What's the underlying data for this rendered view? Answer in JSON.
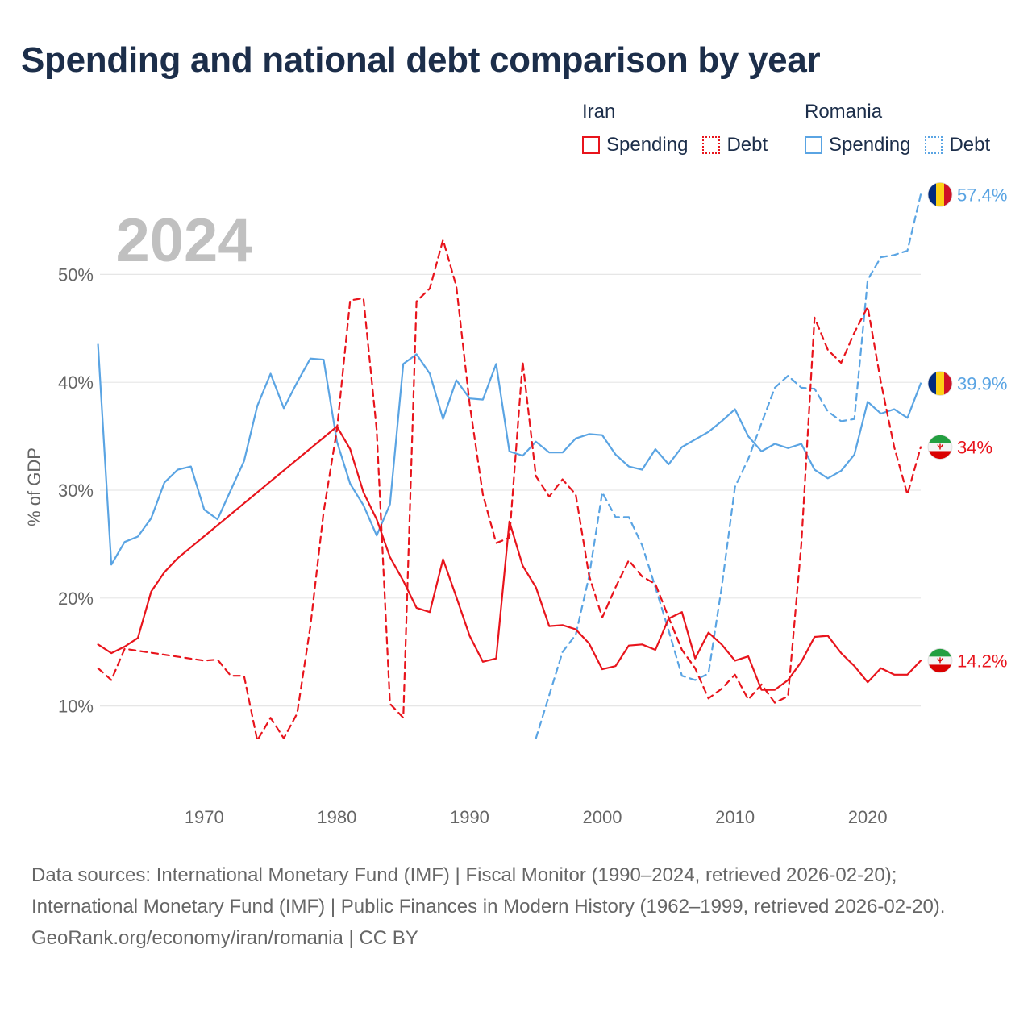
{
  "title": "Spending and national debt comparison by year",
  "year_label": "2024",
  "legend": {
    "groups": [
      {
        "title": "Iran",
        "items": [
          {
            "label": "Spending",
            "style": "solid",
            "color": "#e8141c"
          },
          {
            "label": "Debt",
            "style": "dotted",
            "color": "#e8141c"
          }
        ]
      },
      {
        "title": "Romania",
        "items": [
          {
            "label": "Spending",
            "style": "solid",
            "color": "#5aa4e3"
          },
          {
            "label": "Debt",
            "style": "dotted",
            "color": "#5aa4e3"
          }
        ]
      }
    ]
  },
  "footer": {
    "sources": "Data sources: International Monetary Fund (IMF) | Fiscal Monitor (1990–2024, retrieved 2026-02-20); International Monetary Fund (IMF) | Public Finances in Modern History (1962–1999, retrieved 2026-02-20).",
    "credit": "GeoRank.org/economy/iran/romania | CC BY"
  },
  "chart_data": {
    "type": "line",
    "title": "Spending and national debt comparison by year",
    "xlabel": "",
    "ylabel": "% of GDP",
    "xlim": [
      1961.9,
      2024
    ],
    "ylim": [
      2.2,
      57.5
    ],
    "xticks": [
      1970,
      1980,
      1990,
      2000,
      2010,
      2020
    ],
    "xtick_labels": [
      "1970",
      "1980",
      "1990",
      "2000",
      "2010",
      "2020"
    ],
    "yticks": [
      10,
      20,
      30,
      40,
      50
    ],
    "ytick_labels": [
      "10%",
      "20%",
      "30%",
      "40%",
      "50%"
    ],
    "grid": "horizontal",
    "series": [
      {
        "name": "Romania Spending",
        "country": "Romania",
        "metric": "Spending",
        "color": "#5aa4e3",
        "dash": "solid",
        "end_label": "39.9%",
        "flag": "romania",
        "x": [
          1962,
          1963,
          1964,
          1965,
          1966,
          1967,
          1968,
          1969,
          1970,
          1971,
          1972,
          1973,
          1974,
          1975,
          1976,
          1977,
          1978,
          1979,
          1980,
          1981,
          1982,
          1983,
          1984,
          1985,
          1986,
          1987,
          1988,
          1989,
          1990,
          1991,
          1992,
          1993,
          1994,
          1995,
          1996,
          1997,
          1998,
          1999,
          2000,
          2001,
          2002,
          2003,
          2004,
          2005,
          2006,
          2007,
          2008,
          2009,
          2010,
          2011,
          2012,
          2013,
          2014,
          2015,
          2016,
          2017,
          2018,
          2019,
          2020,
          2021,
          2022,
          2023,
          2024
        ],
        "y": [
          43.5,
          23.1,
          25.2,
          25.7,
          27.4,
          30.7,
          31.9,
          32.2,
          28.2,
          27.3,
          30.0,
          32.7,
          37.8,
          40.8,
          37.6,
          40.0,
          42.2,
          42.1,
          34.5,
          30.6,
          28.6,
          25.8,
          28.7,
          41.7,
          42.6,
          40.8,
          36.6,
          40.2,
          38.5,
          38.4,
          41.7,
          33.6,
          33.2,
          34.5,
          33.5,
          33.5,
          34.8,
          35.2,
          35.1,
          33.3,
          32.2,
          31.9,
          33.8,
          32.4,
          34.0,
          34.7,
          35.4,
          36.4,
          37.5,
          35.0,
          33.6,
          34.3,
          33.9,
          34.3,
          31.9,
          31.1,
          31.8,
          33.3,
          38.2,
          37.1,
          37.5,
          36.7,
          39.9
        ]
      },
      {
        "name": "Romania Debt",
        "country": "Romania",
        "metric": "Debt",
        "color": "#5aa4e3",
        "dash": "dashed",
        "end_label": "57.4%",
        "flag": "romania",
        "x": [
          1995,
          1996,
          1997,
          1998,
          1999,
          2000,
          2001,
          2002,
          2003,
          2004,
          2005,
          2006,
          2007,
          2008,
          2009,
          2010,
          2011,
          2012,
          2013,
          2014,
          2015,
          2016,
          2017,
          2018,
          2019,
          2020,
          2021,
          2022,
          2023,
          2024
        ],
        "y": [
          7.0,
          11.0,
          15.0,
          16.6,
          22.0,
          29.8,
          27.5,
          27.5,
          24.9,
          21.0,
          17.0,
          12.8,
          12.4,
          13.0,
          21.0,
          30.3,
          32.9,
          36.2,
          39.5,
          40.6,
          39.5,
          39.4,
          37.3,
          36.4,
          36.6,
          49.5,
          51.6,
          51.8,
          52.2,
          57.4
        ]
      },
      {
        "name": "Iran Spending",
        "country": "Iran",
        "metric": "Spending",
        "color": "#e8141c",
        "dash": "solid",
        "end_label": "14.2%",
        "flag": "iran",
        "x": [
          1962,
          1963,
          1964,
          1965,
          1966,
          1967,
          1968,
          1980,
          1981,
          1982,
          1983,
          1984,
          1985,
          1986,
          1987,
          1988,
          1989,
          1990,
          1991,
          1992,
          1993,
          1994,
          1995,
          1996,
          1997,
          1998,
          1999,
          2000,
          2001,
          2002,
          2003,
          2004,
          2005,
          2006,
          2007,
          2008,
          2009,
          2010,
          2011,
          2012,
          2013,
          2014,
          2015,
          2016,
          2017,
          2018,
          2019,
          2020,
          2021,
          2022,
          2023,
          2024
        ],
        "y": [
          15.7,
          14.9,
          15.5,
          16.3,
          20.6,
          22.4,
          23.7,
          35.9,
          33.8,
          29.8,
          27.3,
          23.8,
          21.6,
          19.1,
          18.7,
          23.6,
          20.1,
          16.5,
          14.1,
          14.4,
          27.1,
          23.0,
          21.0,
          17.4,
          17.5,
          17.1,
          15.8,
          13.4,
          13.7,
          15.6,
          15.7,
          15.2,
          18.1,
          18.7,
          14.4,
          16.8,
          15.7,
          14.2,
          14.6,
          11.5,
          11.5,
          12.4,
          14.1,
          16.4,
          16.5,
          14.9,
          13.7,
          12.2,
          13.5,
          12.9,
          12.9,
          14.2
        ]
      },
      {
        "name": "Iran Debt",
        "country": "Iran",
        "metric": "Debt",
        "color": "#e8141c",
        "dash": "dashed",
        "end_label": "34%",
        "flag": "iran",
        "x": [
          1962,
          1963,
          1964,
          1970,
          1971,
          1972,
          1973,
          1974,
          1975,
          1976,
          1977,
          1978,
          1979,
          1980,
          1981,
          1982,
          1983,
          1984,
          1985,
          1986,
          1987,
          1988,
          1989,
          1990,
          1991,
          1992,
          1993,
          1994,
          1995,
          1996,
          1997,
          1998,
          1999,
          2000,
          2001,
          2002,
          2003,
          2004,
          2005,
          2006,
          2007,
          2008,
          2009,
          2010,
          2011,
          2012,
          2013,
          2014,
          2015,
          2016,
          2017,
          2018,
          2019,
          2020,
          2021,
          2022,
          2023,
          2024
        ],
        "y": [
          13.5,
          12.4,
          15.3,
          14.2,
          14.3,
          12.8,
          12.8,
          6.8,
          8.9,
          7.0,
          9.3,
          17.4,
          28.0,
          35.6,
          47.6,
          47.8,
          35.6,
          10.2,
          8.9,
          47.5,
          48.7,
          53.2,
          48.9,
          38.0,
          29.6,
          25.1,
          25.6,
          41.9,
          31.3,
          29.4,
          31.0,
          29.6,
          22.1,
          18.2,
          21.0,
          23.5,
          22.0,
          21.3,
          18.2,
          15.2,
          13.5,
          10.7,
          11.6,
          12.9,
          10.6,
          12.0,
          10.3,
          10.9,
          25.0,
          46.0,
          43.0,
          41.8,
          44.6,
          47.0,
          40.0,
          34.0,
          29.6,
          34.0
        ]
      }
    ]
  }
}
